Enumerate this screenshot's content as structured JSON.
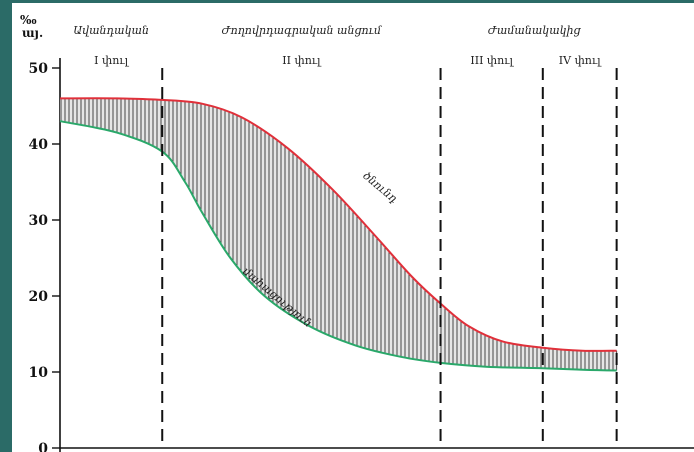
{
  "chart_data": {
    "type": "area",
    "y_unit": [
      "‰",
      "այ."
    ],
    "ylim": [
      0,
      50
    ],
    "xlim": [
      0,
      100
    ],
    "y_ticks": [
      0,
      10,
      20,
      30,
      40,
      50
    ],
    "stages": [
      {
        "label": "Ավանդական",
        "from": 0,
        "to": 18
      },
      {
        "label": "Ժողովրդագրական անցում",
        "from": 18,
        "to": 67
      },
      {
        "label": "Ժամանակակից",
        "from": 67,
        "to": 100
      }
    ],
    "phases": [
      {
        "label": "I փուլ",
        "from": 0,
        "to": 18
      },
      {
        "label": "II փուլ",
        "from": 18,
        "to": 67
      },
      {
        "label": "III փուլ",
        "from": 67,
        "to": 85
      },
      {
        "label": "IV փուլ",
        "from": 85,
        "to": 98
      }
    ],
    "phase_boundaries": [
      18,
      67,
      85,
      98
    ],
    "series": [
      {
        "name": "ծնունդ",
        "color": "#e0303a",
        "x": [
          0,
          10,
          18,
          25,
          32,
          40,
          48,
          56,
          62,
          67,
          72,
          78,
          85,
          92,
          98
        ],
        "y": [
          46,
          46,
          45.8,
          45.3,
          43.5,
          39.5,
          34,
          27.5,
          22.5,
          19,
          16,
          14,
          13.2,
          12.8,
          12.8
        ]
      },
      {
        "name": "մահացություն",
        "color": "#2aa86a",
        "x": [
          0,
          10,
          18,
          22,
          25,
          30,
          36,
          44,
          52,
          60,
          67,
          75,
          85,
          92,
          98
        ],
        "y": [
          43,
          41.5,
          39,
          35,
          31,
          25,
          20,
          16,
          13.5,
          12,
          11.2,
          10.7,
          10.5,
          10.3,
          10.2
        ]
      }
    ],
    "grid": false,
    "legend": "none"
  }
}
